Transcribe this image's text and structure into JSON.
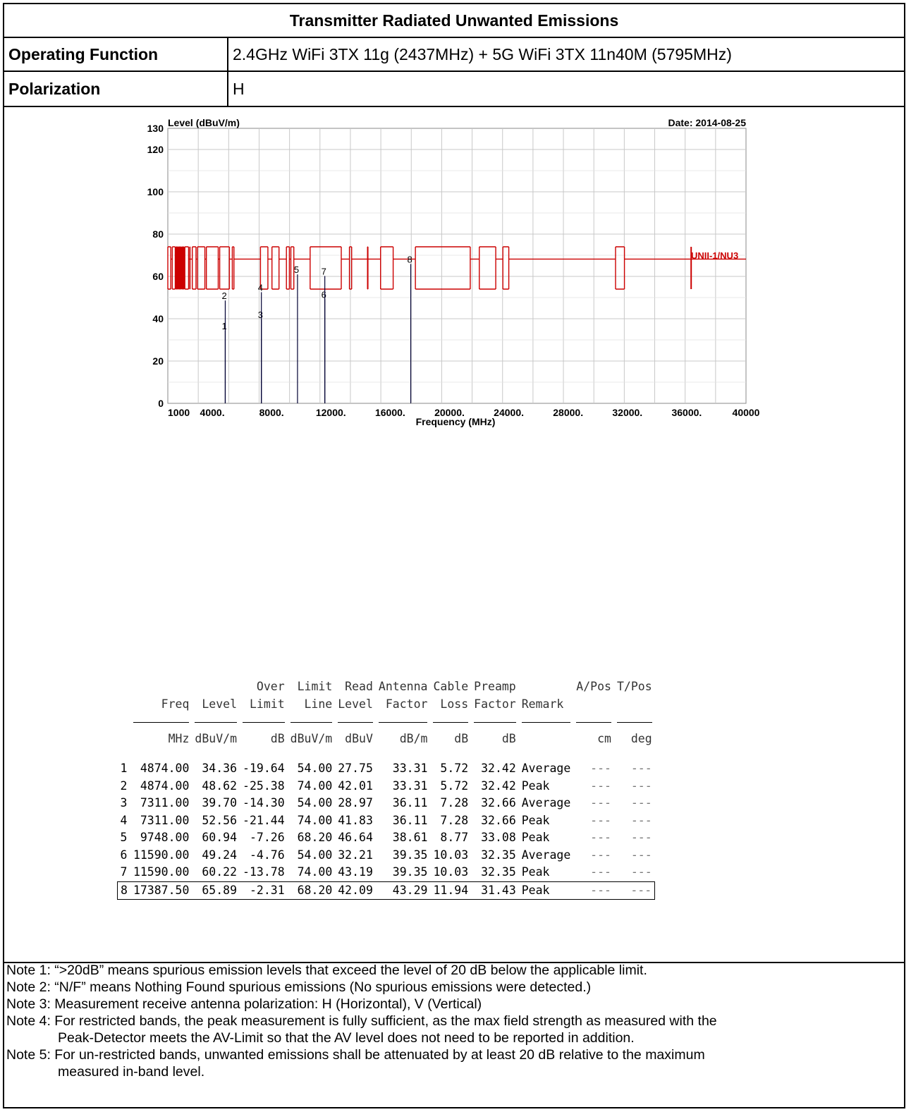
{
  "header": {
    "title": "Transmitter Radiated Unwanted Emissions",
    "operating_function_label": "Operating Function",
    "operating_function_value": "2.4GHz WiFi 3TX 11g (2437MHz) + 5G WiFi 3TX 11n40M (5795MHz)",
    "polarization_label": "Polarization",
    "polarization_value": "H"
  },
  "chart_data": {
    "type": "line",
    "ylabel": "Level (dBuV/m)",
    "xlabel": "Frequency (MHz)",
    "date_label": "Date: 2014-08-25",
    "xlim": [
      1000,
      40000
    ],
    "ylim": [
      0,
      130
    ],
    "x_ticks": [
      {
        "value": 1000,
        "label": "1000"
      },
      {
        "value": 4000,
        "label": "4000."
      },
      {
        "value": 8000,
        "label": "8000."
      },
      {
        "value": 12000,
        "label": "12000."
      },
      {
        "value": 16000,
        "label": "16000."
      },
      {
        "value": 20000,
        "label": "20000."
      },
      {
        "value": 24000,
        "label": "24000."
      },
      {
        "value": 28000,
        "label": "28000."
      },
      {
        "value": 32000,
        "label": "32000."
      },
      {
        "value": 36000,
        "label": "36000."
      },
      {
        "value": 40000,
        "label": "40000"
      }
    ],
    "y_ticks": [
      0,
      20,
      40,
      60,
      80,
      100,
      120,
      130
    ],
    "grid": true,
    "limit_line_label": "UNII-1/NU3",
    "limit_color": "#cc0000",
    "marker_color": "#000033",
    "limit_line": {
      "baseline": 68.2,
      "upper": 74,
      "lower": 54,
      "restricted_bands": [
        [
          1000,
          1200
        ],
        [
          1300,
          1500
        ],
        [
          1550,
          1600
        ],
        [
          1650,
          1700
        ],
        [
          1750,
          1800
        ],
        [
          1850,
          1900
        ],
        [
          1950,
          2000
        ],
        [
          2050,
          2100
        ],
        [
          2150,
          2400
        ],
        [
          2483.5,
          2500
        ],
        [
          2650,
          2900
        ],
        [
          3000,
          3500
        ],
        [
          3600,
          4400
        ],
        [
          4500,
          5150
        ],
        [
          5350,
          5460
        ],
        [
          7250,
          7750
        ],
        [
          8025,
          8500
        ],
        [
          9000,
          9200
        ],
        [
          9300,
          9500
        ],
        [
          10600,
          12700
        ],
        [
          13250,
          13400
        ],
        [
          14470,
          14500
        ],
        [
          15350,
          16200
        ],
        [
          17700,
          21400
        ],
        [
          22010,
          23120
        ],
        [
          23600,
          24000
        ],
        [
          31200,
          31800
        ]
      ],
      "spike": {
        "x": 36300,
        "low": 54,
        "high": 74
      }
    },
    "markers": [
      {
        "id": "1",
        "x": 4874,
        "y": 34.36
      },
      {
        "id": "2",
        "x": 4874,
        "y": 48.62
      },
      {
        "id": "3",
        "x": 7311,
        "y": 39.7
      },
      {
        "id": "4",
        "x": 7311,
        "y": 52.56
      },
      {
        "id": "5",
        "x": 9748,
        "y": 60.94
      },
      {
        "id": "6",
        "x": 11590,
        "y": 49.24
      },
      {
        "id": "7",
        "x": 11590,
        "y": 60.22
      },
      {
        "id": "8",
        "x": 17387.5,
        "y": 65.89
      }
    ]
  },
  "table": {
    "headers_line1": [
      "",
      "",
      "",
      "Over",
      "Limit",
      "Read",
      "Antenna",
      "Cable",
      "Preamp",
      "",
      "A/Pos",
      "T/Pos"
    ],
    "headers_line2": [
      "",
      "Freq",
      "Level",
      "Limit",
      "Line",
      "Level",
      "Factor",
      "Loss",
      "Factor",
      "Remark",
      "",
      ""
    ],
    "units": [
      "",
      "MHz",
      "dBuV/m",
      "dB",
      "dBuV/m",
      "dBuV",
      "dB/m",
      "dB",
      "dB",
      "",
      "cm",
      "deg"
    ],
    "rows": [
      [
        "1",
        "4874.00",
        "34.36",
        "-19.64",
        "54.00",
        "27.75",
        "33.31",
        "5.72",
        "32.42",
        "Average",
        "---",
        "---"
      ],
      [
        "2",
        "4874.00",
        "48.62",
        "-25.38",
        "74.00",
        "42.01",
        "33.31",
        "5.72",
        "32.42",
        "Peak",
        "---",
        "---"
      ],
      [
        "3",
        "7311.00",
        "39.70",
        "-14.30",
        "54.00",
        "28.97",
        "36.11",
        "7.28",
        "32.66",
        "Average",
        "---",
        "---"
      ],
      [
        "4",
        "7311.00",
        "52.56",
        "-21.44",
        "74.00",
        "41.83",
        "36.11",
        "7.28",
        "32.66",
        "Peak",
        "---",
        "---"
      ],
      [
        "5",
        "9748.00",
        "60.94",
        "-7.26",
        "68.20",
        "46.64",
        "38.61",
        "8.77",
        "33.08",
        "Peak",
        "---",
        "---"
      ],
      [
        "6",
        "11590.00",
        "49.24",
        "-4.76",
        "54.00",
        "32.21",
        "39.35",
        "10.03",
        "32.35",
        "Average",
        "---",
        "---"
      ],
      [
        "7",
        "11590.00",
        "60.22",
        "-13.78",
        "74.00",
        "43.19",
        "39.35",
        "10.03",
        "32.35",
        "Peak",
        "---",
        "---"
      ],
      [
        "8",
        "17387.50",
        "65.89",
        "-2.31",
        "68.20",
        "42.09",
        "43.29",
        "11.94",
        "31.43",
        "Peak",
        "---",
        "---"
      ]
    ],
    "boxed_row": 7
  },
  "notes": {
    "n1": "Note 1: “>20dB” means spurious emission levels that exceed the level of 20 dB below the applicable limit.",
    "n2": "Note 2: “N/F” means Nothing Found spurious emissions (No spurious emissions were detected.)",
    "n3": "Note 3: Measurement receive antenna polarization: H (Horizontal), V (Vertical)",
    "n4a": "Note 4: For restricted bands, the peak measurement is fully sufficient, as the max field strength as measured with the",
    "n4b": "Peak-Detector meets the AV-Limit so that the AV level does not need to be reported in addition.",
    "n5a": "Note 5: For un-restricted bands, unwanted emissions shall be attenuated by at least 20 dB relative to the maximum",
    "n5b": "measured in-band level."
  }
}
